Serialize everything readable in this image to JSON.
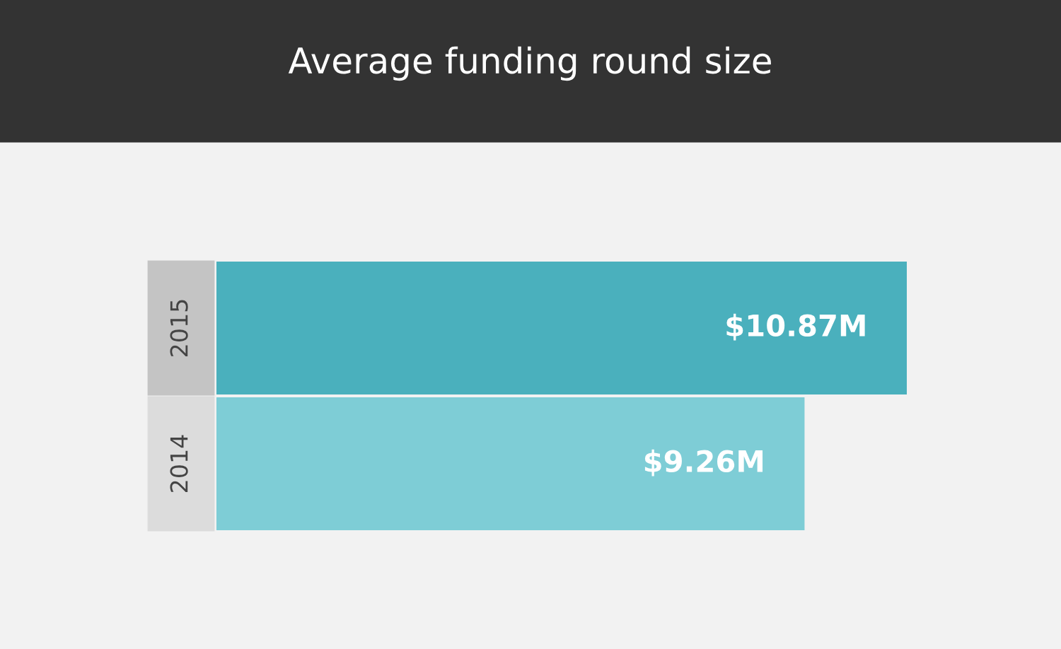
{
  "chart_data": {
    "type": "bar",
    "orientation": "horizontal",
    "title": "Average funding round size",
    "categories": [
      "2015",
      "2014"
    ],
    "values": [
      10.87,
      9.26
    ],
    "colors": [
      "#4ab0bd",
      "#7ecdd6"
    ],
    "value_labels": [
      "$10.87M",
      "$9.26M"
    ],
    "grid": false,
    "legend": false
  }
}
